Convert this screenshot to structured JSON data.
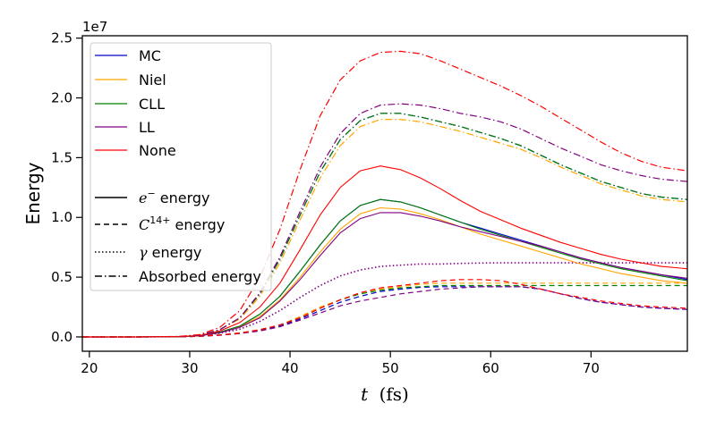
{
  "chart_data": {
    "type": "line",
    "title": "",
    "xlabel_var": "t",
    "xlabel_unit": "(fs)",
    "ylabel": "Energy",
    "y_offset_label": "1e7",
    "xlim": [
      19.3,
      79.6
    ],
    "ylim": [
      -0.12,
      2.52
    ],
    "x_ticks": [
      20,
      30,
      40,
      50,
      60,
      70
    ],
    "y_ticks": [
      0.0,
      0.5,
      1.0,
      1.5,
      2.0,
      2.5
    ],
    "y_tick_labels": [
      "0.0",
      "0.5",
      "1.0",
      "1.5",
      "2.0",
      "2.5"
    ],
    "grid": false,
    "legend_position": "top-left",
    "legend_models": [
      {
        "name": "MC",
        "color": "#0000cc"
      },
      {
        "name": "Niel",
        "color": "#ffa500"
      },
      {
        "name": "CLL",
        "color": "#008000"
      },
      {
        "name": "LL",
        "color": "#800080"
      },
      {
        "name": "None",
        "color": "#ff0000"
      }
    ],
    "legend_styles": [
      {
        "label_math": "e",
        "label_sup": "−",
        "label_text": " energy",
        "dash": "solid"
      },
      {
        "label_math": "C",
        "label_sup": "14+",
        "label_text": " energy",
        "dash": "dashed"
      },
      {
        "label_math": "γ",
        "label_sup": "",
        "label_text": " energy",
        "dash": "dotted"
      },
      {
        "label_math": "",
        "label_sup": "",
        "label_text": "Absorbed energy",
        "dash": "dashdot"
      }
    ],
    "x": [
      19.3,
      25,
      29,
      31,
      33,
      35,
      37,
      39,
      41,
      43,
      45,
      47,
      49,
      51,
      53,
      55,
      57,
      59,
      61,
      63,
      65,
      67,
      69,
      71,
      73,
      75,
      77,
      79.6
    ],
    "series": [
      {
        "model": "MC",
        "kind": "electron",
        "values": [
          0,
          0,
          0.002,
          0.01,
          0.04,
          0.09,
          0.19,
          0.34,
          0.55,
          0.77,
          0.97,
          1.1,
          1.15,
          1.13,
          1.08,
          1.02,
          0.96,
          0.91,
          0.86,
          0.81,
          0.76,
          0.71,
          0.66,
          0.62,
          0.58,
          0.55,
          0.52,
          0.48
        ]
      },
      {
        "model": "Niel",
        "kind": "electron",
        "values": [
          0,
          0,
          0.002,
          0.01,
          0.035,
          0.085,
          0.17,
          0.31,
          0.5,
          0.71,
          0.9,
          1.03,
          1.08,
          1.07,
          1.03,
          0.98,
          0.92,
          0.86,
          0.81,
          0.76,
          0.71,
          0.66,
          0.61,
          0.57,
          0.53,
          0.5,
          0.47,
          0.45
        ]
      },
      {
        "model": "CLL",
        "kind": "electron",
        "values": [
          0,
          0,
          0.002,
          0.01,
          0.04,
          0.09,
          0.19,
          0.34,
          0.55,
          0.77,
          0.97,
          1.1,
          1.15,
          1.13,
          1.08,
          1.02,
          0.96,
          0.9,
          0.85,
          0.8,
          0.75,
          0.7,
          0.65,
          0.61,
          0.57,
          0.54,
          0.51,
          0.47
        ]
      },
      {
        "model": "LL",
        "kind": "electron",
        "values": [
          0,
          0,
          0.002,
          0.01,
          0.035,
          0.08,
          0.16,
          0.3,
          0.48,
          0.68,
          0.87,
          0.99,
          1.04,
          1.04,
          1.01,
          0.97,
          0.92,
          0.88,
          0.84,
          0.8,
          0.76,
          0.71,
          0.66,
          0.62,
          0.58,
          0.55,
          0.52,
          0.49
        ]
      },
      {
        "model": "None",
        "kind": "electron",
        "values": [
          0,
          0,
          0.003,
          0.012,
          0.05,
          0.12,
          0.25,
          0.45,
          0.73,
          1.02,
          1.25,
          1.39,
          1.43,
          1.4,
          1.33,
          1.24,
          1.14,
          1.05,
          0.98,
          0.91,
          0.85,
          0.79,
          0.74,
          0.69,
          0.65,
          0.62,
          0.59,
          0.57
        ]
      },
      {
        "model": "MC",
        "kind": "ion",
        "values": [
          0,
          0,
          0.001,
          0.006,
          0.015,
          0.03,
          0.055,
          0.09,
          0.15,
          0.22,
          0.29,
          0.34,
          0.38,
          0.4,
          0.415,
          0.42,
          0.42,
          0.42,
          0.42,
          0.42,
          0.4,
          0.36,
          0.32,
          0.29,
          0.27,
          0.25,
          0.24,
          0.23
        ]
      },
      {
        "model": "Niel",
        "kind": "ion",
        "values": [
          0,
          0,
          0.001,
          0.006,
          0.016,
          0.033,
          0.06,
          0.1,
          0.17,
          0.25,
          0.31,
          0.37,
          0.4,
          0.42,
          0.44,
          0.45,
          0.45,
          0.45,
          0.45,
          0.45,
          0.45,
          0.45,
          0.45,
          0.45,
          0.45,
          0.45,
          0.45,
          0.45
        ]
      },
      {
        "model": "CLL",
        "kind": "ion",
        "values": [
          0,
          0,
          0.001,
          0.006,
          0.016,
          0.032,
          0.06,
          0.1,
          0.16,
          0.24,
          0.31,
          0.36,
          0.39,
          0.41,
          0.42,
          0.43,
          0.43,
          0.43,
          0.43,
          0.43,
          0.43,
          0.43,
          0.43,
          0.43,
          0.43,
          0.43,
          0.43,
          0.43
        ]
      },
      {
        "model": "LL",
        "kind": "ion",
        "values": [
          0,
          0,
          0.001,
          0.005,
          0.014,
          0.028,
          0.05,
          0.085,
          0.14,
          0.2,
          0.26,
          0.3,
          0.33,
          0.36,
          0.38,
          0.4,
          0.41,
          0.42,
          0.42,
          0.42,
          0.4,
          0.36,
          0.32,
          0.29,
          0.27,
          0.25,
          0.24,
          0.23
        ]
      },
      {
        "model": "None",
        "kind": "ion",
        "values": [
          0,
          0,
          0.001,
          0.006,
          0.016,
          0.032,
          0.06,
          0.1,
          0.16,
          0.24,
          0.31,
          0.37,
          0.41,
          0.43,
          0.45,
          0.47,
          0.48,
          0.48,
          0.47,
          0.44,
          0.4,
          0.36,
          0.33,
          0.3,
          0.28,
          0.26,
          0.25,
          0.24
        ]
      },
      {
        "model": "LL",
        "kind": "photon",
        "values": [
          0,
          0,
          0.002,
          0.01,
          0.03,
          0.065,
          0.13,
          0.22,
          0.33,
          0.43,
          0.51,
          0.56,
          0.59,
          0.6,
          0.61,
          0.61,
          0.615,
          0.618,
          0.62,
          0.62,
          0.62,
          0.62,
          0.62,
          0.62,
          0.62,
          0.62,
          0.62,
          0.62
        ]
      },
      {
        "model": "MC",
        "kind": "absorbed",
        "values": [
          0,
          0,
          0.003,
          0.015,
          0.06,
          0.16,
          0.36,
          0.65,
          1.02,
          1.38,
          1.65,
          1.81,
          1.87,
          1.87,
          1.84,
          1.8,
          1.76,
          1.71,
          1.66,
          1.6,
          1.52,
          1.44,
          1.37,
          1.3,
          1.25,
          1.2,
          1.17,
          1.15
        ]
      },
      {
        "model": "Niel",
        "kind": "absorbed",
        "values": [
          0,
          0,
          0.003,
          0.015,
          0.06,
          0.15,
          0.34,
          0.62,
          0.98,
          1.33,
          1.6,
          1.76,
          1.82,
          1.82,
          1.8,
          1.76,
          1.72,
          1.67,
          1.62,
          1.57,
          1.5,
          1.42,
          1.35,
          1.28,
          1.23,
          1.18,
          1.15,
          1.13
        ]
      },
      {
        "model": "CLL",
        "kind": "absorbed",
        "values": [
          0,
          0,
          0.003,
          0.015,
          0.06,
          0.16,
          0.36,
          0.65,
          1.02,
          1.38,
          1.65,
          1.81,
          1.87,
          1.87,
          1.84,
          1.8,
          1.76,
          1.71,
          1.66,
          1.6,
          1.52,
          1.44,
          1.37,
          1.3,
          1.25,
          1.2,
          1.17,
          1.15
        ]
      },
      {
        "model": "LL",
        "kind": "absorbed",
        "values": [
          0,
          0,
          0.003,
          0.015,
          0.06,
          0.16,
          0.37,
          0.67,
          1.05,
          1.42,
          1.7,
          1.87,
          1.94,
          1.95,
          1.94,
          1.91,
          1.87,
          1.84,
          1.8,
          1.74,
          1.66,
          1.58,
          1.51,
          1.44,
          1.39,
          1.35,
          1.32,
          1.3
        ]
      },
      {
        "model": "None",
        "kind": "absorbed",
        "values": [
          0,
          0,
          0.004,
          0.02,
          0.08,
          0.22,
          0.5,
          0.9,
          1.4,
          1.85,
          2.15,
          2.31,
          2.38,
          2.39,
          2.37,
          2.31,
          2.24,
          2.17,
          2.1,
          2.02,
          1.93,
          1.83,
          1.73,
          1.63,
          1.54,
          1.47,
          1.42,
          1.39
        ]
      }
    ]
  }
}
